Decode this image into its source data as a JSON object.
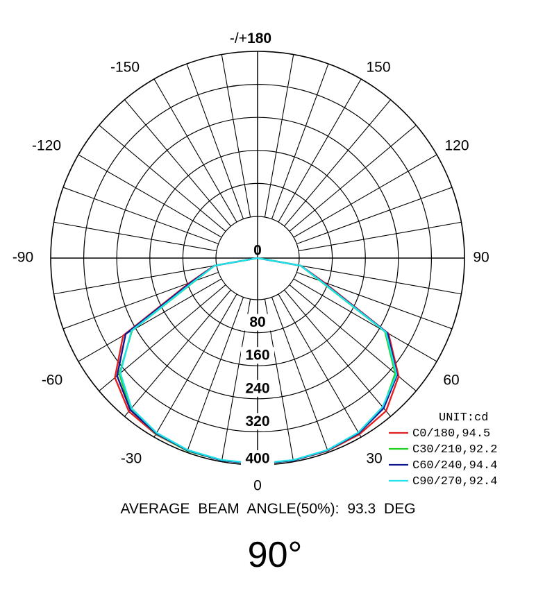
{
  "chart_data": {
    "type": "polar",
    "unit_label": "UNIT:cd",
    "rmax": 400,
    "ring_labels": [
      "0",
      "80",
      "160",
      "240",
      "320",
      "400"
    ],
    "angle_labels": [
      {
        "deg": 0,
        "text": "0"
      },
      {
        "deg": 30,
        "text": "30"
      },
      {
        "deg": -30,
        "text": "-30"
      },
      {
        "deg": 60,
        "text": "60"
      },
      {
        "deg": -60,
        "text": "-60"
      },
      {
        "deg": 90,
        "text": "90"
      },
      {
        "deg": -90,
        "text": "-90"
      },
      {
        "deg": 120,
        "text": "120"
      },
      {
        "deg": -120,
        "text": "-120"
      },
      {
        "deg": 150,
        "text": "150"
      },
      {
        "deg": -150,
        "text": "-150"
      },
      {
        "deg": 180,
        "text": "-/+180"
      }
    ],
    "series": [
      {
        "name": "C0/180,94.5",
        "color": "#e02020",
        "points": [
          [
            -90,
            0
          ],
          [
            -80,
            6
          ],
          [
            -70,
            75
          ],
          [
            -60,
            275
          ],
          [
            -50,
            350
          ],
          [
            -40,
            384
          ],
          [
            -30,
            392
          ],
          [
            -20,
            396
          ],
          [
            -10,
            397
          ],
          [
            0,
            398
          ],
          [
            10,
            397
          ],
          [
            20,
            396
          ],
          [
            30,
            392
          ],
          [
            40,
            383
          ],
          [
            50,
            345
          ],
          [
            60,
            265
          ],
          [
            70,
            70
          ],
          [
            80,
            5
          ],
          [
            90,
            0
          ]
        ]
      },
      {
        "name": "C30/210,92.2",
        "color": "#20d020",
        "points": [
          [
            -90,
            0
          ],
          [
            -80,
            5
          ],
          [
            -70,
            60
          ],
          [
            -60,
            250
          ],
          [
            -50,
            336
          ],
          [
            -40,
            378
          ],
          [
            -30,
            391
          ],
          [
            -20,
            396
          ],
          [
            -10,
            397
          ],
          [
            0,
            398
          ],
          [
            10,
            397
          ],
          [
            20,
            395
          ],
          [
            30,
            389
          ],
          [
            40,
            372
          ],
          [
            50,
            334
          ],
          [
            60,
            255
          ],
          [
            70,
            60
          ],
          [
            80,
            5
          ],
          [
            90,
            0
          ]
        ]
      },
      {
        "name": "C60/240,94.4",
        "color": "#101890",
        "points": [
          [
            -90,
            0
          ],
          [
            -80,
            5
          ],
          [
            -70,
            70
          ],
          [
            -60,
            268
          ],
          [
            -50,
            343
          ],
          [
            -40,
            379
          ],
          [
            -30,
            390
          ],
          [
            -20,
            395
          ],
          [
            -10,
            397
          ],
          [
            0,
            398
          ],
          [
            10,
            397
          ],
          [
            20,
            395
          ],
          [
            30,
            389
          ],
          [
            40,
            374
          ],
          [
            50,
            340
          ],
          [
            60,
            262
          ],
          [
            70,
            65
          ],
          [
            80,
            5
          ],
          [
            90,
            0
          ]
        ]
      },
      {
        "name": "C90/270,92.4",
        "color": "#20e0e8",
        "points": [
          [
            -90,
            0
          ],
          [
            -80,
            5
          ],
          [
            -70,
            62
          ],
          [
            -60,
            252
          ],
          [
            -50,
            333
          ],
          [
            -40,
            374
          ],
          [
            -30,
            388
          ],
          [
            -20,
            394
          ],
          [
            -10,
            396
          ],
          [
            0,
            397
          ],
          [
            10,
            396
          ],
          [
            20,
            394
          ],
          [
            30,
            387
          ],
          [
            40,
            370
          ],
          [
            50,
            338
          ],
          [
            60,
            258
          ],
          [
            70,
            62
          ],
          [
            80,
            5
          ],
          [
            90,
            0
          ]
        ]
      }
    ]
  },
  "footer": {
    "stat": "AVERAGE  BEAM  ANGLE(50%): 93.3  DEG",
    "title": "90°"
  }
}
